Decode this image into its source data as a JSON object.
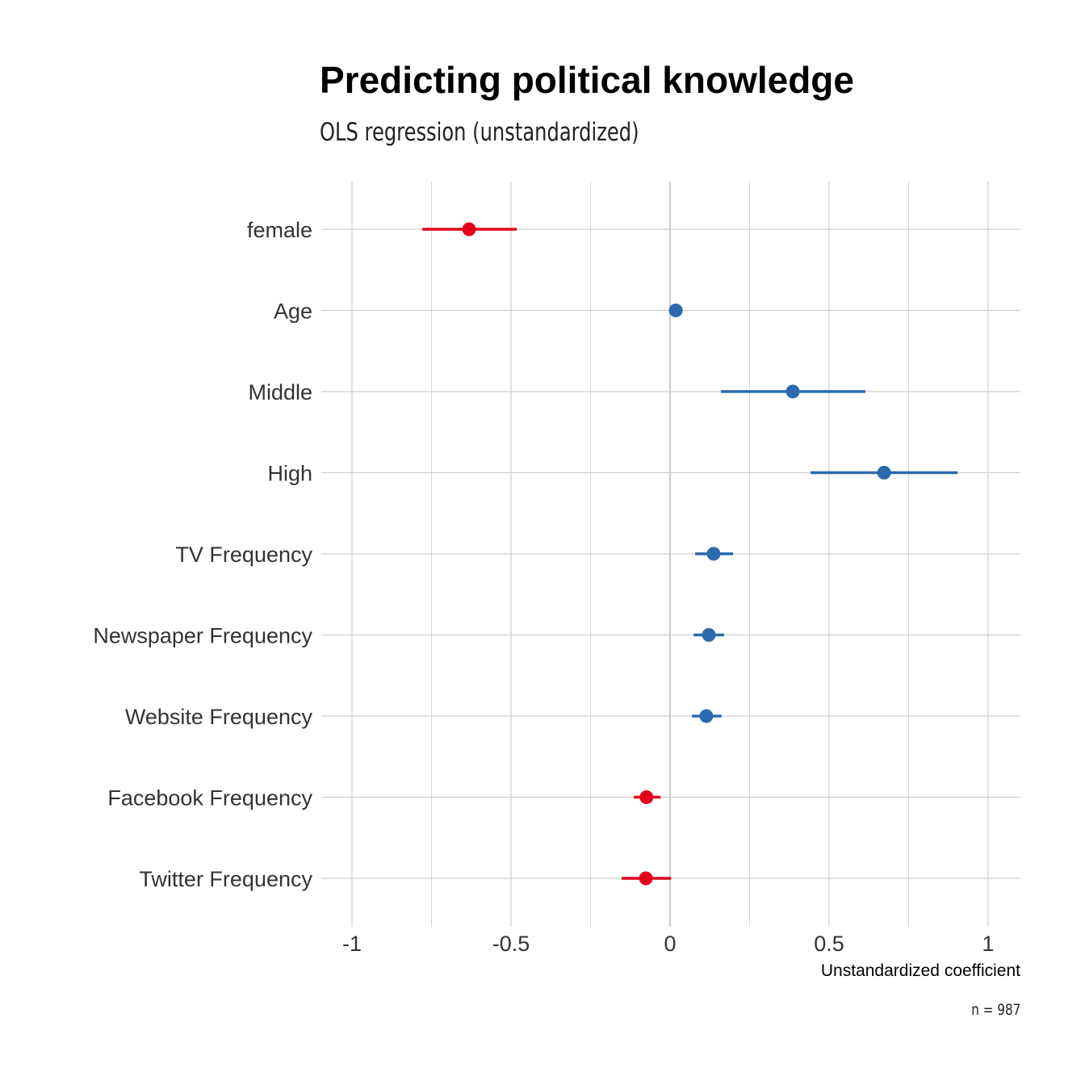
{
  "chart_data": {
    "type": "scatter",
    "subtype": "coefficient-plot",
    "title": "Predicting political knowledge",
    "subtitle": "OLS regression (unstandardized)",
    "xlabel": "Unstandardized coefficient",
    "caption": "n = 987",
    "xlim": [
      -1.1,
      1.1
    ],
    "xticks": [
      -1,
      -0.5,
      0,
      0.5,
      1
    ],
    "xtick_labels": [
      "-1",
      "-0.5",
      "0",
      "0.5",
      "1"
    ],
    "grid": true,
    "colors": {
      "negative": "#e3001b",
      "positive": "#2b6aad"
    },
    "terms": [
      {
        "label": "female",
        "estimate": -0.632,
        "low": -0.779,
        "high": -0.482
      },
      {
        "label": "Age",
        "estimate": 0.018,
        "low": 0.012,
        "high": 0.024
      },
      {
        "label": "Middle",
        "estimate": 0.386,
        "low": 0.16,
        "high": 0.614
      },
      {
        "label": "High",
        "estimate": 0.673,
        "low": 0.442,
        "high": 0.904
      },
      {
        "label": "TV Frequency",
        "estimate": 0.137,
        "low": 0.079,
        "high": 0.198
      },
      {
        "label": "Newspaper Frequency",
        "estimate": 0.122,
        "low": 0.074,
        "high": 0.17
      },
      {
        "label": "Website Frequency",
        "estimate": 0.114,
        "low": 0.069,
        "high": 0.162
      },
      {
        "label": "Facebook Frequency",
        "estimate": -0.074,
        "low": -0.114,
        "high": -0.03
      },
      {
        "label": "Twitter Frequency",
        "estimate": -0.076,
        "low": -0.152,
        "high": 0.003
      }
    ]
  }
}
